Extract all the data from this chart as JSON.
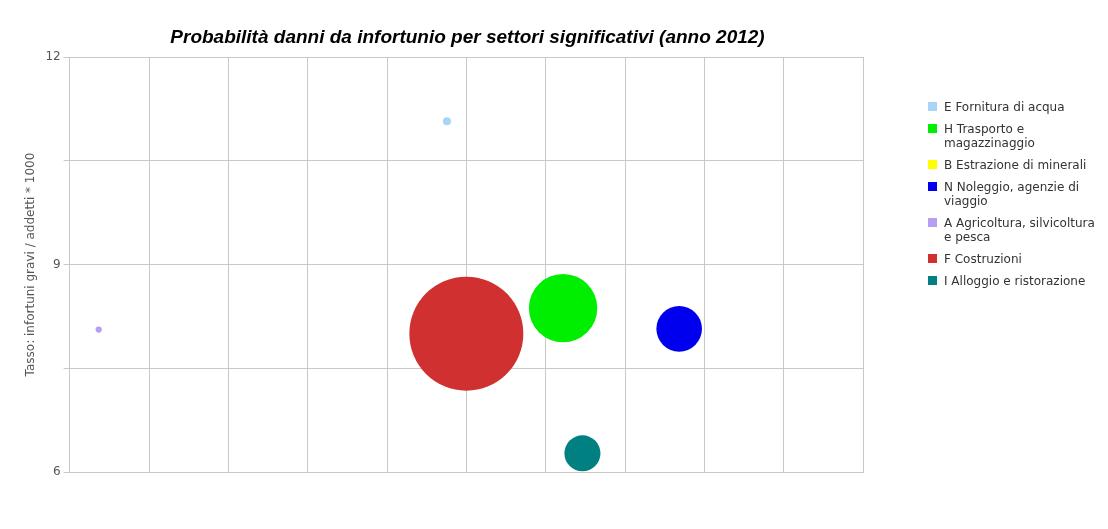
{
  "chart_data": {
    "type": "bubble",
    "title": "Probabilità danni da infortunio per settori significativi (anno 2012)",
    "ylabel": "Tasso: infortuni gravi / addetti * 1000",
    "categories": [
      null,
      null,
      null,
      null,
      null,
      null,
      null,
      null,
      null,
      null,
      null,
      null,
      null,
      null,
      null,
      null,
      null,
      null,
      null,
      null,
      null,
      null,
      null,
      null,
      null,
      null,
      null,
      null,
      null,
      null,
      null,
      null,
      null,
      null,
      null,
      null,
      null,
      null,
      null,
      null,
      null
    ],
    "series": [
      {
        "name": "E Fornitura di acqua",
        "color": "#a8d4f5",
        "values": [
          null,
          null,
          null,
          null,
          null,
          null,
          null,
          null,
          null,
          null,
          null,
          null,
          null,
          null,
          null,
          null,
          null,
          null,
          null,
          11.07,
          null,
          null,
          null,
          null,
          null,
          null,
          null,
          null,
          null,
          null,
          null,
          null,
          null,
          null,
          null,
          null,
          null,
          null,
          null,
          null,
          null
        ],
        "sizes": [
          null,
          null,
          null,
          null,
          null,
          null,
          null,
          null,
          null,
          null,
          null,
          null,
          null,
          null,
          null,
          null,
          null,
          null,
          null,
          0.005,
          null,
          null,
          null,
          null,
          null,
          null,
          null,
          null,
          null,
          null,
          null,
          null,
          null,
          null,
          null,
          null,
          null,
          null,
          null,
          null,
          null
        ]
      },
      {
        "name": "H Trasporto e magazzinaggio",
        "color": "#00ee00",
        "values": [
          null,
          null,
          null,
          null,
          null,
          null,
          null,
          null,
          null,
          null,
          null,
          null,
          null,
          null,
          null,
          null,
          null,
          null,
          null,
          null,
          null,
          null,
          null,
          null,
          null,
          8.37,
          null,
          null,
          null,
          null,
          null,
          null,
          null,
          null,
          null,
          null,
          null,
          null,
          null,
          null,
          null
        ],
        "sizes": [
          null,
          null,
          null,
          null,
          null,
          null,
          null,
          null,
          null,
          null,
          null,
          null,
          null,
          null,
          null,
          null,
          null,
          null,
          null,
          null,
          null,
          null,
          null,
          null,
          null,
          0.36,
          null,
          null,
          null,
          null,
          null,
          null,
          null,
          null,
          null,
          null,
          null,
          null,
          null,
          null,
          null
        ]
      },
      {
        "name": "B Estrazione di minerali",
        "color": "#ffff00",
        "values": [
          null,
          null,
          null,
          null,
          null,
          null,
          null,
          null,
          null,
          null,
          null,
          null,
          null,
          null,
          null,
          null,
          null,
          null,
          null,
          null,
          null,
          null,
          null,
          null,
          null,
          null,
          null,
          null,
          null,
          null,
          null,
          null,
          null,
          null,
          null,
          null,
          null,
          null,
          null,
          null,
          null
        ],
        "sizes": [
          null,
          null,
          null,
          null,
          null,
          null,
          null,
          null,
          null,
          null,
          null,
          null,
          null,
          null,
          null,
          null,
          null,
          null,
          null,
          null,
          null,
          null,
          null,
          null,
          null,
          null,
          null,
          null,
          null,
          null,
          null,
          null,
          null,
          null,
          null,
          null,
          null,
          null,
          null,
          null,
          null
        ]
      },
      {
        "name": "N Noleggio, agenzie di viaggio",
        "color": "#0000ee",
        "values": [
          null,
          null,
          null,
          null,
          null,
          null,
          null,
          null,
          null,
          null,
          null,
          null,
          null,
          null,
          null,
          null,
          null,
          null,
          null,
          null,
          null,
          null,
          null,
          null,
          null,
          null,
          null,
          null,
          null,
          null,
          null,
          8.07,
          null,
          null,
          null,
          null,
          null,
          null,
          null,
          null,
          null
        ],
        "sizes": [
          null,
          null,
          null,
          null,
          null,
          null,
          null,
          null,
          null,
          null,
          null,
          null,
          null,
          null,
          null,
          null,
          null,
          null,
          null,
          null,
          null,
          null,
          null,
          null,
          null,
          null,
          null,
          null,
          null,
          null,
          null,
          0.16,
          null,
          null,
          null,
          null,
          null,
          null,
          null,
          null,
          null
        ]
      },
      {
        "name": "A Agricoltura, silvicoltura e pesca",
        "color": "#b89ef0",
        "values": [
          null,
          8.06,
          null,
          null,
          null,
          null,
          null,
          null,
          null,
          null,
          null,
          null,
          null,
          null,
          null,
          null,
          null,
          null,
          null,
          null,
          null,
          null,
          null,
          null,
          null,
          null,
          null,
          null,
          null,
          null,
          null,
          null,
          null,
          null,
          null,
          null,
          null,
          null,
          null,
          null,
          null
        ],
        "sizes": [
          null,
          0.003,
          null,
          null,
          null,
          null,
          null,
          null,
          null,
          null,
          null,
          null,
          null,
          null,
          null,
          null,
          null,
          null,
          null,
          null,
          null,
          null,
          null,
          null,
          null,
          null,
          null,
          null,
          null,
          null,
          null,
          null,
          null,
          null,
          null,
          null,
          null,
          null,
          null,
          null,
          null
        ]
      },
      {
        "name": "F Costruzioni",
        "color": "#d03030",
        "values": [
          null,
          null,
          null,
          null,
          null,
          null,
          null,
          null,
          null,
          null,
          null,
          null,
          null,
          null,
          null,
          null,
          null,
          null,
          null,
          null,
          8.0,
          null,
          null,
          null,
          null,
          null,
          null,
          null,
          null,
          null,
          null,
          null,
          null,
          null,
          null,
          null,
          null,
          null,
          null,
          null,
          null
        ],
        "sizes": [
          null,
          null,
          null,
          null,
          null,
          null,
          null,
          null,
          null,
          null,
          null,
          null,
          null,
          null,
          null,
          null,
          null,
          null,
          null,
          null,
          1,
          null,
          null,
          null,
          null,
          null,
          null,
          null,
          null,
          null,
          null,
          null,
          null,
          null,
          null,
          null,
          null,
          null,
          null,
          null,
          null
        ]
      },
      {
        "name": "I Alloggio e ristorazione",
        "color": "#008080",
        "values": [
          null,
          null,
          null,
          null,
          null,
          null,
          null,
          null,
          null,
          null,
          null,
          null,
          null,
          null,
          null,
          null,
          null,
          null,
          null,
          null,
          null,
          null,
          null,
          null,
          null,
          null,
          6.27,
          null,
          null,
          null,
          null,
          null,
          null,
          null,
          null,
          null,
          null,
          null,
          null,
          null,
          null
        ],
        "sizes": [
          null,
          null,
          null,
          null,
          null,
          null,
          null,
          null,
          null,
          null,
          null,
          null,
          null,
          null,
          null,
          null,
          null,
          null,
          null,
          null,
          null,
          null,
          null,
          null,
          null,
          null,
          0.1,
          null,
          null,
          null,
          null,
          null,
          null,
          null,
          null,
          null,
          null,
          null,
          null,
          null,
          null
        ]
      }
    ],
    "ylim": [
      6,
      12
    ],
    "yticks": [
      6,
      {
        "value": 7.5,
        "label": null
      },
      9,
      {
        "value": 10.5,
        "label": null
      },
      12
    ],
    "tick_labels": "y",
    "grid": true,
    "legend": "right"
  }
}
